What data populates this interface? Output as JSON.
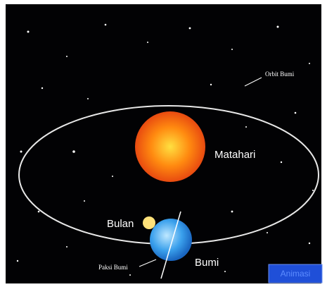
{
  "labels": {
    "orbit": "Orbit Bumi",
    "sun": "Matahari",
    "moon": "Bulan",
    "earth": "Bumi",
    "axis": "Paksi Bumi"
  },
  "button": "Animasi"
}
